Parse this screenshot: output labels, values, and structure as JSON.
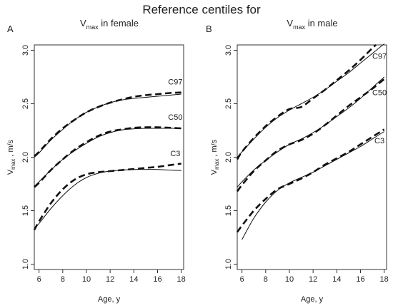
{
  "figure_title": "Reference centiles for",
  "chart_data": [
    {
      "type": "line",
      "panel_label": "A",
      "title_main": "V",
      "title_sub": "max",
      "title_rest": " in female",
      "xlabel": "Age, y",
      "ylabel_main": "V",
      "ylabel_sub": "max",
      "ylabel_rest": " , m/s",
      "xlim": [
        5.6,
        18.2
      ],
      "ylim": [
        0.95,
        3.05
      ],
      "xticks": [
        6,
        8,
        10,
        12,
        14,
        16,
        18
      ],
      "yticks": [
        1.0,
        1.5,
        2.0,
        2.5,
        3.0
      ],
      "ytick_labels": [
        "1.0",
        "1.5",
        "2.0",
        "2.5",
        "3.0"
      ],
      "grid": false,
      "series": [
        {
          "name": "C97",
          "label_at": [
            17.5,
            2.68
          ],
          "solid": {
            "x": [
              5.6,
              6,
              7,
              8,
              9,
              10,
              11,
              12,
              13,
              14,
              15,
              16,
              17,
              18
            ],
            "y": [
              2.0,
              2.04,
              2.16,
              2.26,
              2.35,
              2.42,
              2.47,
              2.51,
              2.535,
              2.55,
              2.56,
              2.57,
              2.58,
              2.59
            ]
          },
          "dashed": {
            "x": [
              5.6,
              6,
              7,
              8,
              9,
              10,
              11,
              12,
              13,
              14,
              15,
              16,
              17,
              18
            ],
            "y": [
              2.01,
              2.05,
              2.17,
              2.27,
              2.35,
              2.42,
              2.47,
              2.51,
              2.54,
              2.565,
              2.58,
              2.59,
              2.6,
              2.605
            ]
          }
        },
        {
          "name": "C50",
          "label_at": [
            17.5,
            2.35
          ],
          "solid": {
            "x": [
              5.6,
              6,
              7,
              8,
              9,
              10,
              11,
              12,
              13,
              14,
              15,
              16,
              17,
              18
            ],
            "y": [
              1.73,
              1.77,
              1.88,
              1.98,
              2.06,
              2.13,
              2.19,
              2.23,
              2.255,
              2.265,
              2.27,
              2.27,
              2.27,
              2.27
            ]
          },
          "dashed": {
            "x": [
              5.6,
              6,
              7,
              8,
              9,
              10,
              11,
              12,
              13,
              14,
              15,
              16,
              17,
              18
            ],
            "y": [
              1.72,
              1.76,
              1.88,
              1.98,
              2.07,
              2.14,
              2.2,
              2.24,
              2.26,
              2.275,
              2.28,
              2.28,
              2.275,
              2.27
            ]
          }
        },
        {
          "name": "C3",
          "label_at": [
            17.5,
            2.01
          ],
          "solid": {
            "x": [
              5.6,
              6,
              7,
              8,
              9,
              10,
              11,
              12,
              13,
              14,
              15,
              16,
              17,
              18
            ],
            "y": [
              1.33,
              1.38,
              1.52,
              1.64,
              1.74,
              1.81,
              1.85,
              1.87,
              1.88,
              1.885,
              1.885,
              1.885,
              1.88,
              1.875
            ]
          },
          "dashed": {
            "x": [
              5.6,
              6,
              7,
              8,
              9,
              10,
              11,
              12,
              13,
              14,
              15,
              16,
              17,
              18
            ],
            "y": [
              1.32,
              1.4,
              1.57,
              1.7,
              1.79,
              1.84,
              1.86,
              1.87,
              1.88,
              1.89,
              1.9,
              1.91,
              1.925,
              1.94
            ]
          }
        }
      ]
    },
    {
      "type": "line",
      "panel_label": "B",
      "title_main": "V",
      "title_sub": "max",
      "title_rest": " in male",
      "xlabel": "Age, y",
      "ylabel_main": "V",
      "ylabel_sub": "max",
      "ylabel_rest": " , m/s",
      "xlim": [
        5.6,
        18.2
      ],
      "ylim": [
        0.95,
        3.05
      ],
      "xticks": [
        6,
        8,
        10,
        12,
        14,
        16,
        18
      ],
      "yticks": [
        1.0,
        1.5,
        2.0,
        2.5,
        3.0
      ],
      "ytick_labels": [
        "1.0",
        "1.5",
        "2.0",
        "2.5",
        "3.0"
      ],
      "grid": false,
      "series": [
        {
          "name": "C97",
          "label_at": [
            17.6,
            2.92
          ],
          "solid": {
            "x": [
              5.6,
              6,
              7,
              8,
              9,
              10,
              11,
              12,
              13,
              14,
              15,
              16,
              17,
              18
            ],
            "y": [
              2.0,
              2.05,
              2.17,
              2.28,
              2.37,
              2.44,
              2.5,
              2.56,
              2.63,
              2.71,
              2.79,
              2.88,
              2.97,
              3.06
            ]
          },
          "dashed": {
            "x": [
              5.6,
              6,
              7,
              8,
              9,
              10,
              11,
              12,
              13,
              14,
              15,
              16,
              17,
              17.3
            ],
            "y": [
              1.98,
              2.05,
              2.18,
              2.29,
              2.38,
              2.45,
              2.47,
              2.55,
              2.63,
              2.72,
              2.81,
              2.91,
              3.02,
              3.05
            ]
          }
        },
        {
          "name": "C50",
          "label_at": [
            17.6,
            2.58
          ],
          "solid": {
            "x": [
              5.6,
              6,
              7,
              8,
              9,
              10,
              11,
              12,
              13,
              14,
              15,
              16,
              17,
              18
            ],
            "y": [
              1.72,
              1.77,
              1.88,
              1.97,
              2.05,
              2.12,
              2.17,
              2.23,
              2.3,
              2.38,
              2.46,
              2.55,
              2.65,
              2.75
            ]
          },
          "dashed": {
            "x": [
              5.6,
              6,
              7,
              8,
              9,
              10,
              11,
              12,
              13,
              14,
              15,
              16,
              17,
              18
            ],
            "y": [
              1.68,
              1.74,
              1.87,
              1.97,
              2.06,
              2.12,
              2.16,
              2.22,
              2.3,
              2.39,
              2.48,
              2.56,
              2.64,
              2.73
            ]
          }
        },
        {
          "name": "C3",
          "label_at": [
            17.6,
            2.13
          ],
          "solid": {
            "x": [
              6,
              7,
              8,
              9,
              10,
              11,
              12,
              13,
              14,
              15,
              16,
              17,
              18
            ],
            "y": [
              1.23,
              1.43,
              1.58,
              1.69,
              1.76,
              1.81,
              1.86,
              1.92,
              1.98,
              2.04,
              2.1,
              2.17,
              2.24
            ]
          },
          "dashed": {
            "x": [
              5.6,
              6,
              7,
              8,
              9,
              10,
              11,
              12,
              13,
              14,
              15,
              16,
              17,
              18
            ],
            "y": [
              1.3,
              1.36,
              1.5,
              1.61,
              1.7,
              1.75,
              1.8,
              1.86,
              1.93,
              1.99,
              2.05,
              2.12,
              2.19,
              2.26
            ]
          }
        }
      ]
    }
  ]
}
